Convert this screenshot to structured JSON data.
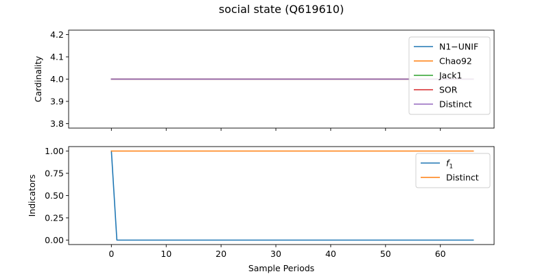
{
  "chart_data": {
    "title": "social state (Q619610)",
    "xlabel": "Sample Periods",
    "x_ticks": [
      0,
      10,
      20,
      30,
      40,
      50,
      60
    ],
    "x_range": [
      -7.8,
      69.8
    ],
    "x_last": 66,
    "panels": [
      {
        "type": "line",
        "ylabel": "Cardinality",
        "ylim": [
          3.78,
          4.22
        ],
        "y_ticks": [
          3.8,
          3.9,
          4.0,
          4.1,
          4.2
        ],
        "y_tick_labels": [
          "3.8",
          "3.9",
          "4.0",
          "4.1",
          "4.2"
        ],
        "legend_position": "top-right",
        "series": [
          {
            "name": "N1−UNIF",
            "color": "#1f77b4",
            "constant": 4.0
          },
          {
            "name": "Chao92",
            "color": "#ff7f0e",
            "constant": 4.0
          },
          {
            "name": "Jack1",
            "color": "#2ca02c",
            "constant": 4.0
          },
          {
            "name": "SOR",
            "color": "#d62728",
            "constant": 4.0
          },
          {
            "name": "Distinct",
            "color": "#9467bd",
            "constant": 4.0
          }
        ]
      },
      {
        "type": "line",
        "ylabel": "Indicators",
        "ylim": [
          -0.05,
          1.05
        ],
        "y_ticks": [
          0.0,
          0.25,
          0.5,
          0.75,
          1.0
        ],
        "y_tick_labels": [
          "0.00",
          "0.25",
          "0.50",
          "0.75",
          "1.00"
        ],
        "legend_position": "top-right",
        "series": [
          {
            "name": "f",
            "name_subscript": "1",
            "color": "#1f77b4",
            "points": [
              [
                0,
                1.0
              ],
              [
                1,
                0.0
              ],
              [
                66,
                0.0
              ]
            ]
          },
          {
            "name": "Distinct",
            "color": "#ff7f0e",
            "constant": 1.0
          }
        ]
      }
    ]
  }
}
